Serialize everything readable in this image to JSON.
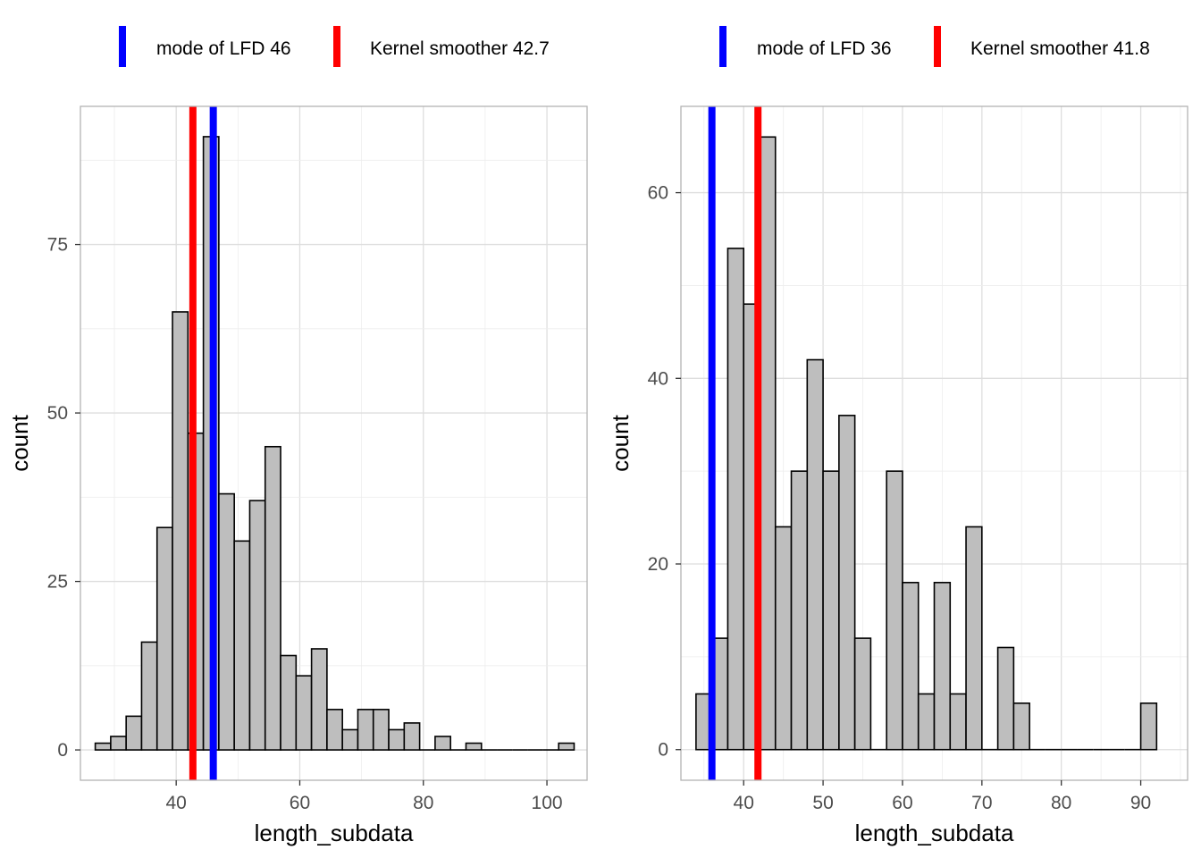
{
  "chart_data": [
    {
      "type": "bar",
      "subtype": "histogram",
      "xlabel": "length_subdata",
      "ylabel": "count",
      "xlim": [
        24.5,
        106.5
      ],
      "ylim": [
        -4.5,
        95.5
      ],
      "xticks": [
        40,
        60,
        80,
        100
      ],
      "yticks": [
        0,
        25,
        50,
        75
      ],
      "grid": true,
      "legend_position": "top",
      "bar_color": "#bebebe",
      "bar_outline": "#000000",
      "bins": [
        {
          "x0": 26.9,
          "x1": 29.4,
          "count": 1
        },
        {
          "x0": 29.4,
          "x1": 31.9,
          "count": 2
        },
        {
          "x0": 31.9,
          "x1": 34.4,
          "count": 5
        },
        {
          "x0": 34.4,
          "x1": 36.9,
          "count": 16
        },
        {
          "x0": 36.9,
          "x1": 39.4,
          "count": 33
        },
        {
          "x0": 39.4,
          "x1": 41.9,
          "count": 65
        },
        {
          "x0": 41.9,
          "x1": 44.4,
          "count": 47
        },
        {
          "x0": 44.4,
          "x1": 46.9,
          "count": 91
        },
        {
          "x0": 46.9,
          "x1": 49.4,
          "count": 38
        },
        {
          "x0": 49.4,
          "x1": 51.9,
          "count": 31
        },
        {
          "x0": 51.9,
          "x1": 54.4,
          "count": 37
        },
        {
          "x0": 54.4,
          "x1": 56.9,
          "count": 45
        },
        {
          "x0": 56.9,
          "x1": 59.4,
          "count": 14
        },
        {
          "x0": 59.4,
          "x1": 61.9,
          "count": 11
        },
        {
          "x0": 61.9,
          "x1": 64.4,
          "count": 15
        },
        {
          "x0": 64.4,
          "x1": 66.9,
          "count": 6
        },
        {
          "x0": 66.9,
          "x1": 69.4,
          "count": 3
        },
        {
          "x0": 69.4,
          "x1": 71.9,
          "count": 6
        },
        {
          "x0": 71.9,
          "x1": 74.4,
          "count": 6
        },
        {
          "x0": 74.4,
          "x1": 76.9,
          "count": 3
        },
        {
          "x0": 76.9,
          "x1": 79.4,
          "count": 4
        },
        {
          "x0": 79.4,
          "x1": 81.9,
          "count": 0
        },
        {
          "x0": 81.9,
          "x1": 84.4,
          "count": 2
        },
        {
          "x0": 84.4,
          "x1": 86.9,
          "count": 0
        },
        {
          "x0": 86.9,
          "x1": 89.4,
          "count": 1
        },
        {
          "x0": 89.4,
          "x1": 91.9,
          "count": 0
        },
        {
          "x0": 91.9,
          "x1": 94.4,
          "count": 0
        },
        {
          "x0": 94.4,
          "x1": 96.9,
          "count": 0
        },
        {
          "x0": 96.9,
          "x1": 99.4,
          "count": 0
        },
        {
          "x0": 99.4,
          "x1": 101.9,
          "count": 0
        },
        {
          "x0": 101.9,
          "x1": 104.4,
          "count": 1
        }
      ],
      "vlines": [
        {
          "label": "mode of LFD 46",
          "x": 46,
          "color": "#0000ff"
        },
        {
          "label": "Kernel smoother 42.7",
          "x": 42.7,
          "color": "#ff0000"
        }
      ]
    },
    {
      "type": "bar",
      "subtype": "histogram",
      "xlabel": "length_subdata",
      "ylabel": "count",
      "xlim": [
        32.1,
        95.9
      ],
      "ylim": [
        -3.3,
        69.3
      ],
      "xticks": [
        40,
        50,
        60,
        70,
        80,
        90
      ],
      "yticks": [
        0,
        20,
        40,
        60
      ],
      "grid": true,
      "legend_position": "top",
      "bar_color": "#bebebe",
      "bar_outline": "#000000",
      "bins": [
        {
          "x0": 34.0,
          "x1": 36.0,
          "count": 6
        },
        {
          "x0": 36.0,
          "x1": 38.0,
          "count": 12
        },
        {
          "x0": 38.0,
          "x1": 40.0,
          "count": 54
        },
        {
          "x0": 40.0,
          "x1": 42.0,
          "count": 48
        },
        {
          "x0": 42.0,
          "x1": 44.0,
          "count": 66
        },
        {
          "x0": 44.0,
          "x1": 46.0,
          "count": 24
        },
        {
          "x0": 46.0,
          "x1": 48.0,
          "count": 30
        },
        {
          "x0": 48.0,
          "x1": 50.0,
          "count": 42
        },
        {
          "x0": 50.0,
          "x1": 52.0,
          "count": 30
        },
        {
          "x0": 52.0,
          "x1": 54.0,
          "count": 36
        },
        {
          "x0": 54.0,
          "x1": 56.0,
          "count": 12
        },
        {
          "x0": 56.0,
          "x1": 58.0,
          "count": 0
        },
        {
          "x0": 58.0,
          "x1": 60.0,
          "count": 30
        },
        {
          "x0": 60.0,
          "x1": 62.0,
          "count": 18
        },
        {
          "x0": 62.0,
          "x1": 64.0,
          "count": 6
        },
        {
          "x0": 64.0,
          "x1": 66.0,
          "count": 18
        },
        {
          "x0": 66.0,
          "x1": 68.0,
          "count": 6
        },
        {
          "x0": 68.0,
          "x1": 70.0,
          "count": 24
        },
        {
          "x0": 70.0,
          "x1": 72.0,
          "count": 0
        },
        {
          "x0": 72.0,
          "x1": 74.0,
          "count": 11
        },
        {
          "x0": 74.0,
          "x1": 76.0,
          "count": 5
        },
        {
          "x0": 76.0,
          "x1": 78.0,
          "count": 0
        },
        {
          "x0": 78.0,
          "x1": 80.0,
          "count": 0
        },
        {
          "x0": 80.0,
          "x1": 82.0,
          "count": 0
        },
        {
          "x0": 82.0,
          "x1": 84.0,
          "count": 0
        },
        {
          "x0": 84.0,
          "x1": 86.0,
          "count": 0
        },
        {
          "x0": 86.0,
          "x1": 88.0,
          "count": 0
        },
        {
          "x0": 88.0,
          "x1": 90.0,
          "count": 0
        },
        {
          "x0": 90.0,
          "x1": 92.0,
          "count": 5
        }
      ],
      "vlines": [
        {
          "label": "mode of LFD 36",
          "x": 36,
          "color": "#0000ff"
        },
        {
          "label": "Kernel smoother 41.8",
          "x": 41.8,
          "color": "#ff0000"
        }
      ]
    }
  ]
}
